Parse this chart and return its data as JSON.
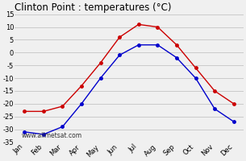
{
  "title": "Clinton Point : temperatures (°C)",
  "months": [
    "Jan",
    "Feb",
    "Mar",
    "Apr",
    "May",
    "Jun",
    "Jul",
    "Aug",
    "Sep",
    "Oct",
    "Nov",
    "Dec"
  ],
  "max_temps": [
    -23,
    -23,
    -21,
    -13,
    -4,
    6,
    11,
    10,
    3,
    -6,
    -15,
    -20
  ],
  "min_temps": [
    -31,
    -32,
    -29,
    -20,
    -10,
    -1,
    3,
    3,
    -2,
    -10,
    -22,
    -27
  ],
  "line_color_max": "#cc0000",
  "line_color_min": "#0000cc",
  "marker": "o",
  "marker_size": 2.5,
  "ylim": [
    -35,
    15
  ],
  "yticks": [
    -35,
    -30,
    -25,
    -20,
    -15,
    -10,
    -5,
    0,
    5,
    10,
    15
  ],
  "grid_color": "#bbbbbb",
  "bg_color": "#f0f0f0",
  "watermark": "www.allmetsat.com",
  "title_fontsize": 8.5,
  "tick_fontsize": 6.0,
  "linewidth": 1.0
}
